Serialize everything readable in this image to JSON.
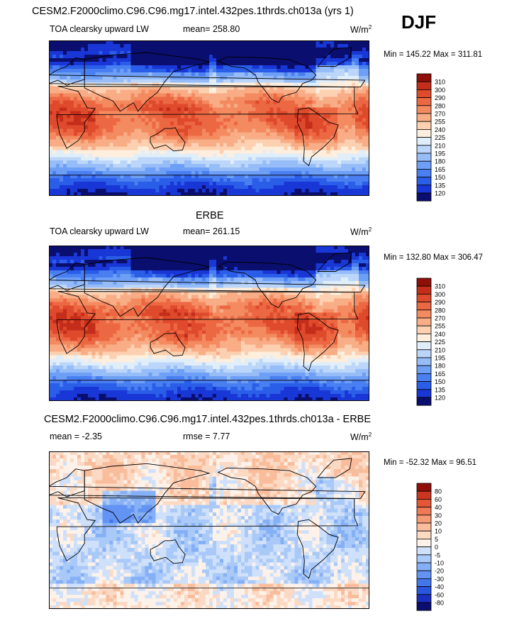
{
  "season": "DJF",
  "colors": {
    "full": [
      "#0a0e6e",
      "#1937d6",
      "#2b5ee8",
      "#4a7ff2",
      "#6e9ff6",
      "#97bdf8",
      "#bcd6fa",
      "#e0eefa",
      "#fdeedd",
      "#fcd0b0",
      "#f8ad86",
      "#f48a60",
      "#ec6843",
      "#e04a2c",
      "#c42d1a",
      "#8e1008"
    ],
    "diff": [
      "#0a0e6e",
      "#1a2fc0",
      "#2a55e0",
      "#4476ec",
      "#6393f3",
      "#86b0f6",
      "#a9c9f8",
      "#cfe0fa",
      "#fdf2ea",
      "#fcd9c3",
      "#f9bd9c",
      "#f59c77",
      "#ef7a55",
      "#e45636",
      "#cc3520",
      "#8e1008"
    ]
  },
  "chart_data": [
    {
      "type": "heatmap",
      "name": "model",
      "title": "CESM2.F2000climo.C96.C96.mg17.intel.432pes.1thrds.ch013a (yrs 1)",
      "variable": "TOA clearsky upward LW",
      "mean": "mean= 258.80",
      "units": "W/m",
      "units_sup": "2",
      "minmax": "Min = 145.22 Max = 311.81",
      "min": 145.22,
      "max": 311.81,
      "levels": [
        "310",
        "300",
        "290",
        "280",
        "270",
        "255",
        "240",
        "225",
        "210",
        "195",
        "180",
        "165",
        "150",
        "135",
        "120"
      ]
    },
    {
      "type": "heatmap",
      "name": "obs",
      "title": "ERBE",
      "variable": "TOA clearsky upward LW",
      "mean": "mean= 261.15",
      "units": "W/m",
      "units_sup": "2",
      "minmax": "Min = 132.80 Max = 306.47",
      "min": 132.8,
      "max": 306.47,
      "levels": [
        "310",
        "300",
        "290",
        "280",
        "270",
        "255",
        "240",
        "225",
        "210",
        "195",
        "180",
        "165",
        "150",
        "135",
        "120"
      ]
    },
    {
      "type": "heatmap",
      "name": "diff",
      "title": "CESM2.F2000climo.C96.C96.mg17.intel.432pes.1thrds.ch013a - ERBE",
      "mean": "mean =  -2.35",
      "rmse": "rmse =   7.77",
      "units": "W/m",
      "units_sup": "2",
      "minmax": "Min = -52.32 Max =  96.51",
      "min": -52.32,
      "max": 96.51,
      "levels": [
        "80",
        "60",
        "40",
        "30",
        "20",
        "10",
        "5",
        "0",
        "-5",
        "-10",
        "-20",
        "-30",
        "-40",
        "-60",
        "-80"
      ]
    }
  ]
}
